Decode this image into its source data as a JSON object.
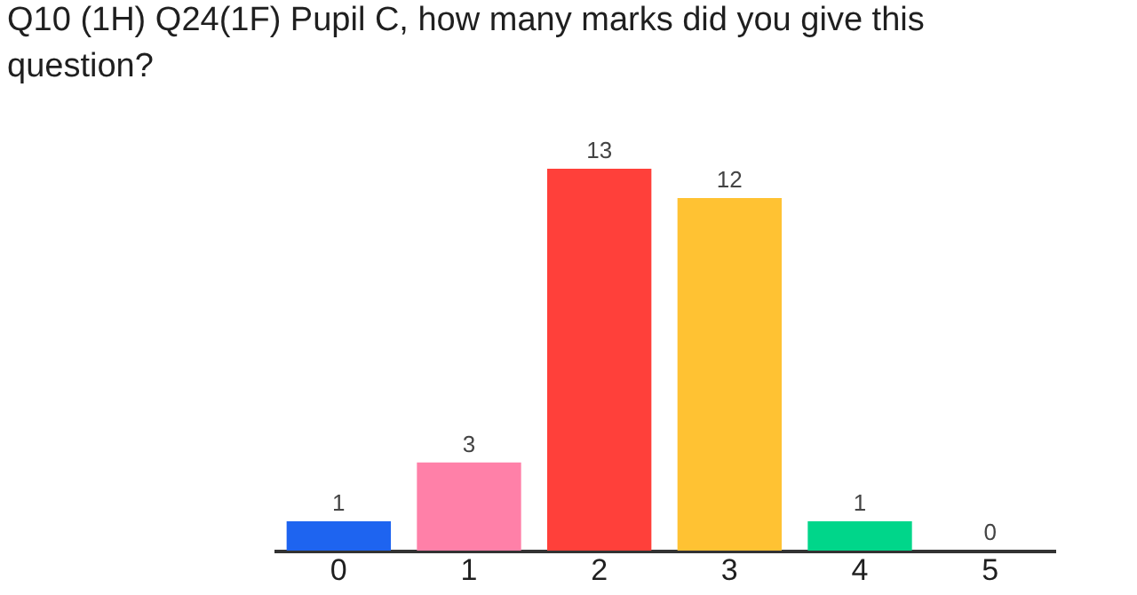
{
  "chart_data": {
    "type": "bar",
    "title": "Q10 (1H) Q24(1F) Pupil C, how many marks did you give this question?",
    "categories": [
      "0",
      "1",
      "2",
      "3",
      "4",
      "5"
    ],
    "values": [
      1,
      3,
      13,
      12,
      1,
      0
    ],
    "colors": [
      "#1e64f0",
      "#ff80a8",
      "#ff403a",
      "#ffc233",
      "#00d68a",
      "#8c66ff"
    ],
    "data_labels": true,
    "grid": false,
    "legend": false
  }
}
